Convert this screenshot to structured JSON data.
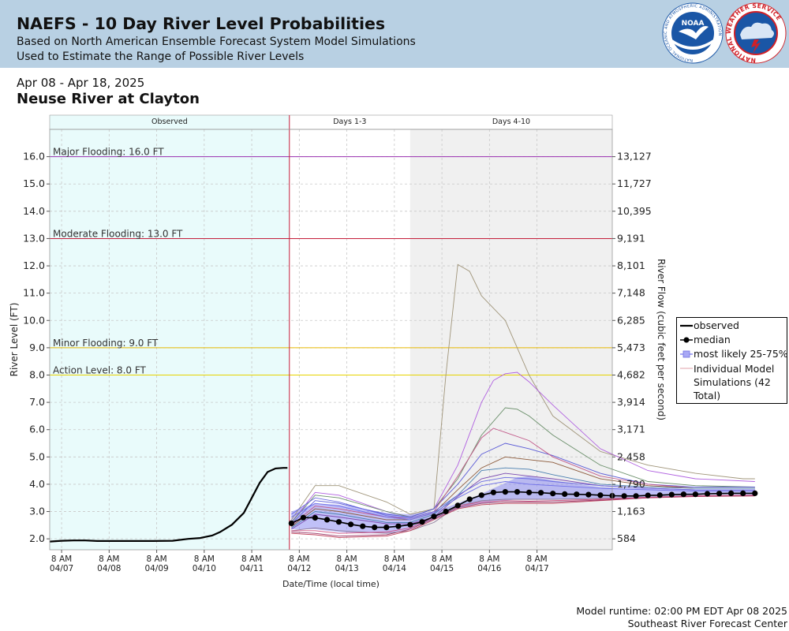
{
  "header": {
    "title": "NAEFS - 10 Day River Level Probabilities",
    "subtitle1": "Based on North American Ensemble Forecast System Model Simulations",
    "subtitle2": "Used to Estimate the Range of Possible River Levels",
    "logos": {
      "noaa": {
        "text": "NOAA",
        "ring_text": "NATIONAL OCEANIC AND ATMOSPHERIC ADMINISTRATION",
        "color": "#1a56a6"
      },
      "nws": {
        "ring_text": "NATIONAL WEATHER SERVICE",
        "color": "#d12027"
      }
    }
  },
  "date_range": "Apr 08 - Apr 18, 2025",
  "location": "Neuse River at Clayton",
  "footer": {
    "runtime": "Model runtime: 02:00 PM EDT Apr 08 2025",
    "center": "Southeast River Forecast Center"
  },
  "legend": {
    "observed": "observed",
    "median": "median",
    "likely": "most likely 25-75%",
    "simulations": "Individual Model Simulations (42 Total)"
  },
  "colors": {
    "observed_bg": "#e9fbfb",
    "days4_10_bg": "#f0f0f0",
    "major": "#9a2fb0",
    "moderate": "#c41e3a",
    "minor": "#e6b800",
    "action": "#e6d300",
    "band": "#8c8cf0",
    "median": "#000000"
  },
  "chart_data": {
    "type": "line",
    "xlabel": "Date/Time (local time)",
    "ylabel": "River Level (FT)",
    "ylabel_right": "River Flow (cubic feet per second)",
    "ylim": [
      1.6,
      17.0
    ],
    "xlim_hours": [
      -182,
      102
    ],
    "grid": true,
    "legend_position": "right",
    "periods": [
      "Observed",
      "Days 1-3",
      "Days 4-10"
    ],
    "y_ticks": [
      "2.0",
      "3.0",
      "4.0",
      "5.0",
      "6.0",
      "7.0",
      "8.0",
      "9.0",
      "10.0",
      "11.0",
      "12.0",
      "13.0",
      "14.0",
      "15.0",
      "16.0"
    ],
    "flow_ticks": [
      {
        "stage": 2.0,
        "label": "584"
      },
      {
        "stage": 3.0,
        "label": "1,163"
      },
      {
        "stage": 4.0,
        "label": "1,790"
      },
      {
        "stage": 5.0,
        "label": "2,458"
      },
      {
        "stage": 6.0,
        "label": "3,171"
      },
      {
        "stage": 7.0,
        "label": "3,914"
      },
      {
        "stage": 8.0,
        "label": "4,682"
      },
      {
        "stage": 9.0,
        "label": "5,473"
      },
      {
        "stage": 10.0,
        "label": "6,285"
      },
      {
        "stage": 11.0,
        "label": "7,148"
      },
      {
        "stage": 12.0,
        "label": "8,101"
      },
      {
        "stage": 13.0,
        "label": "9,191"
      },
      {
        "stage": 14.0,
        "label": "10,395"
      },
      {
        "stage": 15.0,
        "label": "11,727"
      },
      {
        "stage": 16.0,
        "label": "13,127"
      }
    ],
    "x_ticks": [
      {
        "line1": "8 AM",
        "line2": "04/07"
      },
      {
        "line1": "8 AM",
        "line2": "04/08"
      },
      {
        "line1": "8 AM",
        "line2": "04/09"
      },
      {
        "line1": "8 AM",
        "line2": "04/10"
      },
      {
        "line1": "8 AM",
        "line2": "04/11"
      },
      {
        "line1": "8 AM",
        "line2": "04/12"
      },
      {
        "line1": "8 AM",
        "line2": "04/13"
      },
      {
        "line1": "8 AM",
        "line2": "04/14"
      },
      {
        "line1": "8 AM",
        "line2": "04/15"
      },
      {
        "line1": "8 AM",
        "line2": "04/16"
      },
      {
        "line1": "8 AM",
        "line2": "04/17"
      }
    ],
    "flood_levels": [
      {
        "label": "Major Flooding: 16.0 FT",
        "stage": 16.0,
        "color": "#9a2fb0"
      },
      {
        "label": "Moderate Flooding: 13.0 FT",
        "stage": 13.0,
        "color": "#c41e3a"
      },
      {
        "label": "Minor Flooding: 9.0 FT",
        "stage": 9.0,
        "color": "#e6b800"
      },
      {
        "label": "Action Level: 8.0 FT",
        "stage": 8.0,
        "color": "#e6d300"
      }
    ],
    "observed": {
      "x_hours": [
        -182,
        -176,
        -170,
        -164,
        -158,
        -150,
        -140,
        -130,
        -120,
        -112,
        -106,
        -100,
        -96,
        -90,
        -84,
        -80,
        -76,
        -72,
        -68,
        -64,
        -62
      ],
      "y": [
        1.9,
        1.93,
        1.94,
        1.94,
        1.92,
        1.92,
        1.92,
        1.92,
        1.93,
        2.0,
        2.03,
        2.12,
        2.25,
        2.52,
        2.95,
        3.5,
        4.05,
        4.45,
        4.58,
        4.6,
        4.6
      ]
    },
    "median": {
      "x_hours": [
        -60,
        -54,
        -48,
        -42,
        -36,
        -30,
        -24,
        -18,
        -12,
        -6,
        0,
        6,
        12,
        18,
        24,
        30,
        36,
        42,
        48,
        54,
        60,
        66,
        72,
        78,
        84,
        90,
        96,
        102,
        108,
        114,
        120,
        126,
        132,
        138,
        144,
        150,
        156,
        162,
        168,
        174
      ],
      "y": [
        2.57,
        2.78,
        2.77,
        2.7,
        2.62,
        2.53,
        2.46,
        2.42,
        2.42,
        2.46,
        2.52,
        2.62,
        2.82,
        3.0,
        3.22,
        3.45,
        3.6,
        3.7,
        3.72,
        3.72,
        3.7,
        3.69,
        3.66,
        3.64,
        3.63,
        3.62,
        3.6,
        3.58,
        3.57,
        3.57,
        3.59,
        3.6,
        3.62,
        3.63,
        3.63,
        3.65,
        3.66,
        3.67,
        3.67,
        3.67
      ]
    },
    "likely_band": {
      "x_hours": [
        -60,
        -48,
        -36,
        -24,
        -12,
        0,
        12,
        24,
        36,
        48,
        54,
        60,
        72,
        84,
        96,
        108,
        120,
        132,
        144,
        156,
        174
      ],
      "lower": [
        2.35,
        2.35,
        2.25,
        2.2,
        2.2,
        2.35,
        2.7,
        3.1,
        3.3,
        3.4,
        3.45,
        3.45,
        3.45,
        3.45,
        3.48,
        3.5,
        3.53,
        3.56,
        3.6,
        3.62,
        3.62
      ],
      "upper": [
        3.0,
        3.3,
        3.25,
        3.1,
        2.95,
        2.9,
        3.0,
        3.3,
        3.65,
        4.05,
        4.25,
        4.3,
        4.15,
        4.0,
        3.9,
        3.85,
        3.85,
        3.82,
        3.8,
        3.8,
        3.8
      ]
    },
    "simulations": [
      {
        "x_hours": [
          -60,
          -48,
          -36,
          -12,
          0,
          12,
          18,
          24,
          30,
          36,
          48,
          60,
          72,
          96,
          120,
          144,
          168,
          174
        ],
        "y": [
          2.7,
          3.95,
          3.95,
          3.35,
          2.9,
          3.1,
          8.0,
          12.05,
          11.8,
          10.9,
          10.0,
          8.0,
          6.5,
          5.2,
          4.7,
          4.4,
          4.2,
          4.2
        ],
        "color": "#a0957a"
      },
      {
        "x_hours": [
          -60,
          -48,
          -36,
          -12,
          0,
          12,
          24,
          36,
          42,
          48,
          54,
          60,
          72,
          96,
          120,
          144,
          174
        ],
        "y": [
          2.6,
          3.7,
          3.6,
          3.0,
          2.8,
          3.1,
          4.7,
          7.0,
          7.8,
          8.05,
          8.1,
          7.75,
          6.9,
          5.3,
          4.5,
          4.2,
          4.1
        ],
        "color": "#b060e0"
      },
      {
        "x_hours": [
          -60,
          -48,
          -36,
          -12,
          0,
          12,
          24,
          36,
          48,
          54,
          60,
          72,
          96,
          120,
          144,
          174
        ],
        "y": [
          2.6,
          3.6,
          3.5,
          3.0,
          2.8,
          3.1,
          4.2,
          5.8,
          6.8,
          6.75,
          6.5,
          5.8,
          4.7,
          4.1,
          3.95,
          3.9
        ],
        "color": "#6a8f6a"
      },
      {
        "x_hours": [
          -60,
          -48,
          -36,
          -12,
          0,
          12,
          24,
          36,
          48,
          60,
          72,
          96,
          120,
          144,
          174
        ],
        "y": [
          2.55,
          3.4,
          3.3,
          2.9,
          2.8,
          3.1,
          4.0,
          5.1,
          5.5,
          5.3,
          5.05,
          4.4,
          4.0,
          3.9,
          3.9
        ],
        "color": "#5b5bd6"
      },
      {
        "x_hours": [
          -60,
          -48,
          -36,
          -12,
          0,
          12,
          24,
          36,
          42,
          48,
          60,
          72,
          96,
          120,
          144,
          174
        ],
        "y": [
          2.5,
          3.2,
          3.1,
          2.8,
          2.75,
          3.0,
          4.3,
          5.7,
          6.05,
          5.9,
          5.6,
          5.0,
          4.3,
          4.0,
          3.85,
          3.85
        ],
        "color": "#c25a8a"
      },
      {
        "x_hours": [
          -60,
          -48,
          -36,
          -12,
          0,
          12,
          24,
          36,
          48,
          60,
          72,
          96,
          120,
          144,
          174
        ],
        "y": [
          2.45,
          3.1,
          3.0,
          2.7,
          2.7,
          2.95,
          3.8,
          4.6,
          5.0,
          4.9,
          4.8,
          4.2,
          3.95,
          3.85,
          3.85
        ],
        "color": "#8c5a3a"
      },
      {
        "x_hours": [
          -60,
          -48,
          -36,
          -12,
          0,
          12,
          24,
          36,
          48,
          60,
          72,
          96,
          120,
          144,
          174
        ],
        "y": [
          2.4,
          3.0,
          2.9,
          2.6,
          2.6,
          2.9,
          3.6,
          4.5,
          4.6,
          4.55,
          4.35,
          4.0,
          3.9,
          3.85,
          3.85
        ],
        "color": "#4a7fb0"
      },
      {
        "x_hours": [
          -60,
          -48,
          -36,
          -12,
          0,
          12,
          24,
          36,
          48,
          60,
          72,
          96,
          120,
          144,
          174
        ],
        "y": [
          2.35,
          2.9,
          2.8,
          2.55,
          2.55,
          2.8,
          3.55,
          4.2,
          4.4,
          4.3,
          4.2,
          3.95,
          3.85,
          3.8,
          3.8
        ],
        "color": "#7a4ab0"
      },
      {
        "x_hours": [
          -60,
          -48,
          -36,
          -12,
          0,
          12,
          24,
          36,
          48,
          60,
          72,
          96,
          120,
          144,
          174
        ],
        "y": [
          2.3,
          2.4,
          2.3,
          2.2,
          2.3,
          2.6,
          3.2,
          3.4,
          3.45,
          3.45,
          3.45,
          3.48,
          3.52,
          3.58,
          3.6
        ],
        "color": "#8e7a9a"
      },
      {
        "x_hours": [
          -60,
          -48,
          -36,
          -12,
          0,
          12,
          24,
          36,
          48,
          60,
          72,
          96,
          120,
          144,
          174
        ],
        "y": [
          2.2,
          2.15,
          2.05,
          2.1,
          2.3,
          2.7,
          3.1,
          3.25,
          3.3,
          3.3,
          3.3,
          3.4,
          3.5,
          3.55,
          3.57
        ],
        "color": "#c0405a"
      },
      {
        "x_hours": [
          -60,
          -48,
          -36,
          -12,
          0,
          12,
          24,
          36,
          48,
          60,
          72,
          96,
          120,
          144,
          174
        ],
        "y": [
          2.25,
          2.2,
          2.1,
          2.15,
          2.35,
          2.75,
          3.15,
          3.3,
          3.35,
          3.35,
          3.35,
          3.42,
          3.5,
          3.56,
          3.58
        ],
        "color": "#9a3a6a"
      },
      {
        "x_hours": [
          -60,
          -48,
          -36,
          -12,
          0,
          12,
          24,
          36,
          48,
          60,
          72,
          96,
          120,
          144,
          174
        ],
        "y": [
          2.3,
          2.3,
          2.2,
          2.25,
          2.4,
          2.8,
          3.2,
          3.35,
          3.4,
          3.38,
          3.4,
          3.45,
          3.52,
          3.58,
          3.6
        ],
        "color": "#d05080"
      },
      {
        "x_hours": [
          -60,
          -48,
          -36,
          -12,
          0,
          12,
          24,
          36,
          48,
          60,
          72,
          96,
          120,
          144,
          174
        ],
        "y": [
          2.9,
          3.5,
          3.35,
          2.85,
          2.75,
          3.0,
          3.6,
          4.1,
          4.25,
          4.2,
          4.1,
          3.95,
          3.85,
          3.8,
          3.8
        ],
        "color": "#6a6ae0"
      },
      {
        "x_hours": [
          -60,
          -48,
          -36,
          -12,
          0,
          12,
          24,
          36,
          48,
          60,
          72,
          96,
          120,
          144,
          174
        ],
        "y": [
          2.8,
          3.3,
          3.2,
          2.8,
          2.7,
          2.95,
          3.5,
          3.95,
          4.1,
          4.0,
          3.95,
          3.85,
          3.8,
          3.75,
          3.75
        ],
        "color": "#7070e8"
      }
    ]
  }
}
